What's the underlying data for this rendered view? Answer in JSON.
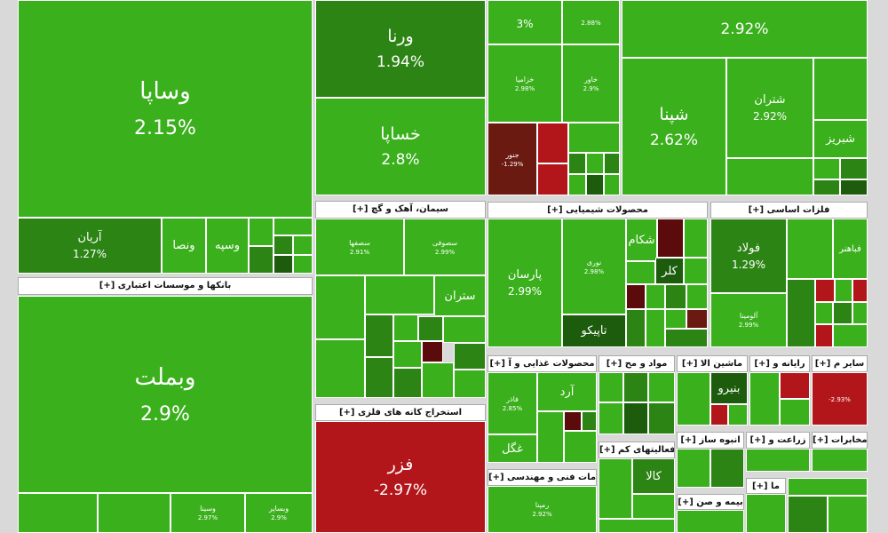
{
  "tiles": [
    {
      "name": "وساپا",
      "change": "2.15%"
    },
    {
      "name": "آریان",
      "change": "1.27%"
    },
    {
      "name": "ونصا"
    },
    {
      "name": "وسپه"
    },
    {
      "name": "وبملت",
      "change": "2.9%"
    },
    {
      "name": "وسینا",
      "change": "2.97%"
    },
    {
      "name": "وبساپر",
      "change": "2.9%"
    },
    {
      "name": "ورنا",
      "change": "1.94%"
    },
    {
      "name": "خساپا",
      "change": "2.8%"
    },
    {
      "name": "سصفها",
      "change": "2.91%"
    },
    {
      "name": "سصوفی",
      "change": "2.99%"
    },
    {
      "name": "ستران"
    },
    {
      "name": "فزر",
      "change": "-2.97%"
    },
    {
      "change": "3%"
    },
    {
      "change": "2.88%"
    },
    {
      "name": "خزامیا",
      "change": "2.98%"
    },
    {
      "name": "خاور",
      "change": "2.9%"
    },
    {
      "name": "جنور",
      "change": "-1.29%"
    },
    {
      "name": "پارسان",
      "change": "2.99%"
    },
    {
      "name": "نوری",
      "change": "2.98%"
    },
    {
      "name": "تاپیکو"
    },
    {
      "name": "شکام"
    },
    {
      "name": "کلر"
    },
    {
      "name": "فاذر",
      "change": "2.85%"
    },
    {
      "name": "غگل"
    },
    {
      "name": "رمپنا",
      "change": "2.92%"
    },
    {
      "change": "2.92%"
    },
    {
      "name": "شپنا",
      "change": "2.62%"
    },
    {
      "name": "شتران",
      "change": "2.92%"
    },
    {
      "name": "شبریز"
    },
    {
      "name": "فولاد",
      "change": "1.29%"
    },
    {
      "name": "فباهنر"
    },
    {
      "name": "آلومینا",
      "change": "2.99%"
    },
    {
      "name": "بنیرو"
    },
    {
      "name": "کالا"
    },
    {
      "change": "-2.93%"
    },
    {
      "name": "آرد"
    }
  ],
  "sectors": [
    "[+] بانکها و موسسات اعتباری",
    "[+] سیمان، آهک و گچ",
    "[+] استخراج کانه های فلزی",
    "[+] محصولات شیمیایی",
    "[+] محصولات غذایی و آ",
    "[+] خدمات فنی و مهندسی",
    "[+] فلزات اساسی",
    "[+] مواد و مح",
    "[+] ماشین الا",
    "[+] رایانه و",
    "[+] سایر م",
    "[+] فعالیتهای کم",
    "[+] انبوه ساز",
    "[+] زراعت و",
    "[+] مخابرات",
    "[+] بیمه و صن",
    "[+] ما"
  ]
}
